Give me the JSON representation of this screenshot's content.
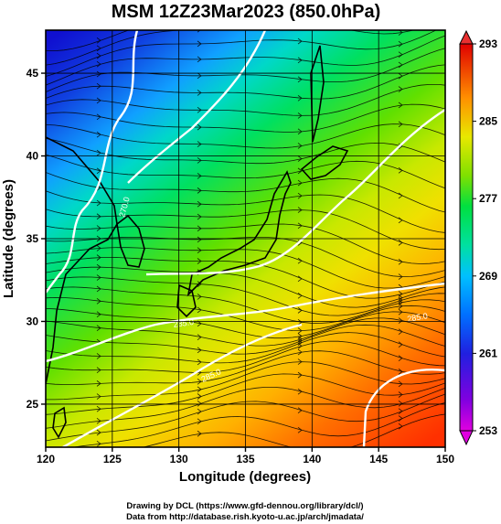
{
  "chart_data": {
    "type": "heatmap",
    "title": "MSM 12Z23Mar2023 (850.0hPa)",
    "xlabel": "Longitude (degrees)",
    "ylabel": "Latitude  (degrees)",
    "xlim": [
      120,
      150
    ],
    "ylim": [
      22.4,
      47.6
    ],
    "x_ticks": [
      120,
      125,
      130,
      135,
      140,
      145,
      150
    ],
    "x_tick_labels": [
      "120",
      "125",
      "130",
      "135",
      "140",
      "145",
      "150"
    ],
    "y_ticks": [
      25,
      30,
      35,
      40,
      45
    ],
    "y_tick_labels": [
      "25",
      "30",
      "35",
      "40",
      "45"
    ],
    "colorbar": {
      "min": 253,
      "max": 293,
      "tick_values": [
        253,
        261,
        269,
        277,
        285,
        293
      ],
      "tick_labels": [
        "253",
        "261",
        "269",
        "277",
        "285",
        "293"
      ],
      "colors": [
        "#e000e0",
        "#7000e0",
        "#2020e0",
        "#0060ff",
        "#00b0ff",
        "#00e0c0",
        "#00e070",
        "#40e000",
        "#a0e000",
        "#e0e000",
        "#ffc000",
        "#ff8000",
        "#ff4000",
        "#e00000"
      ]
    },
    "contour_labels": [
      "270.0",
      "285.0",
      "285.0",
      "285.0"
    ],
    "grid": true,
    "overlays": [
      "temperature shading",
      "streamlines",
      "isotherm contours",
      "coastlines"
    ]
  },
  "credits": {
    "line1": "Drawing by DCL (https://www.gfd-dennou.org/library/dcl/)",
    "line2": "Data from http://database.rish.kyoto-u.ac.jp/arch/jmadata/"
  }
}
